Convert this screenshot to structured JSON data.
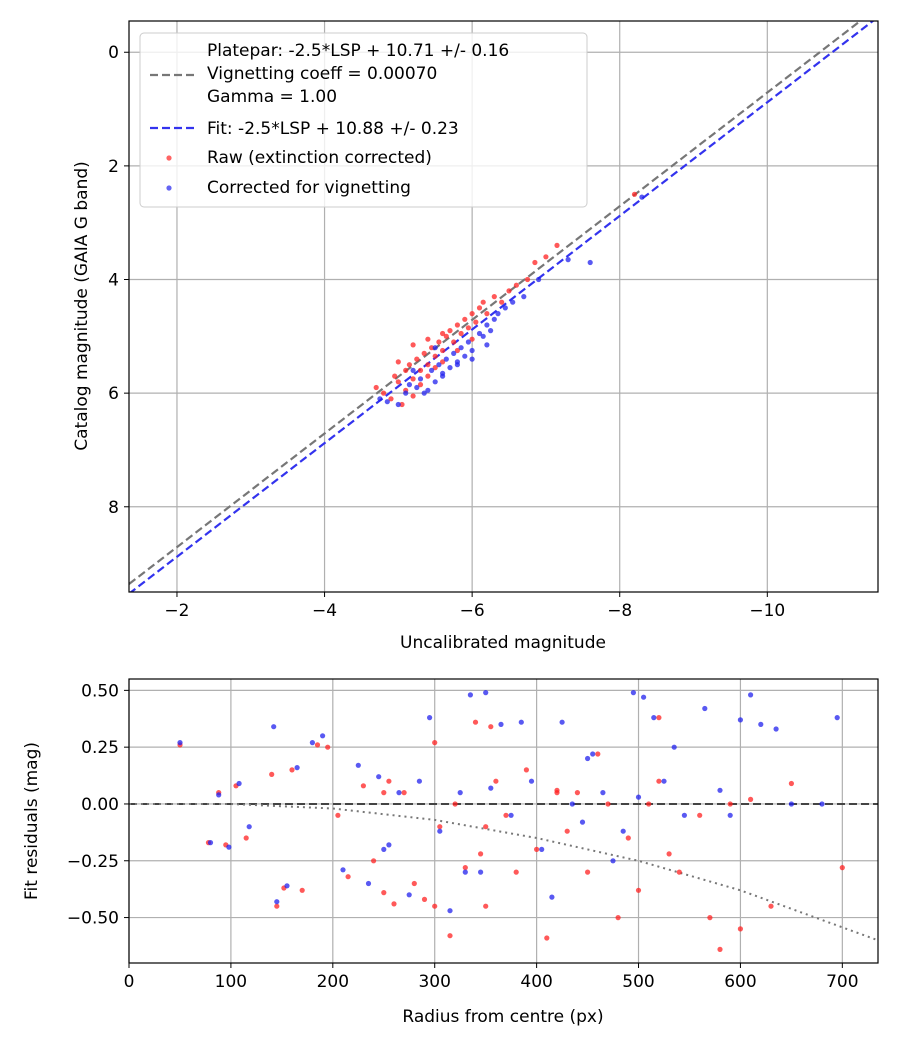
{
  "chart_data": [
    {
      "type": "scatter",
      "xlabel": "Uncalibrated magnitude",
      "ylabel": "Catalog magnitude (GAIA G band)",
      "xlim": [
        -1.35,
        -11.5
      ],
      "ylim": [
        9.5,
        -0.55
      ],
      "x_inverted": true,
      "y_inverted": true,
      "xticks": [
        -2,
        -4,
        -6,
        -8,
        -10
      ],
      "xtick_labels": [
        "−2",
        "−4",
        "−6",
        "−8",
        "−10"
      ],
      "yticks": [
        0,
        2,
        4,
        6,
        8
      ],
      "ytick_labels": [
        "0",
        "2",
        "4",
        "6",
        "8"
      ],
      "grid": true,
      "legend_position": "top-left",
      "legend": {
        "platepar_lines": [
          "Platepar: -2.5*LSP + 10.71 +/- 0.16",
          "Vignetting coeff = 0.00070",
          "Gamma = 1.00"
        ],
        "fit": "Fit: -2.5*LSP + 10.88 +/- 0.23",
        "raw": "Raw (extinction corrected)",
        "corrected": "Corrected for vignetting"
      },
      "series": [
        {
          "name": "Platepar",
          "kind": "line",
          "slope": 1,
          "intercept": 10.71,
          "color": "#777777",
          "dash": "dashed"
        },
        {
          "name": "Fit",
          "kind": "line",
          "slope": 1,
          "intercept": 10.88,
          "color": "#3333ee",
          "dash": "dashed"
        },
        {
          "name": "Raw (extinction corrected)",
          "kind": "scatter",
          "color": "#ff2222",
          "x": [
            -4.7,
            -4.8,
            -4.9,
            -4.95,
            -5.0,
            -5.05,
            -5.1,
            -5.1,
            -5.15,
            -5.2,
            -5.2,
            -5.25,
            -5.3,
            -5.3,
            -5.35,
            -5.4,
            -5.4,
            -5.45,
            -5.5,
            -5.5,
            -5.55,
            -5.6,
            -5.6,
            -5.65,
            -5.7,
            -5.75,
            -5.8,
            -5.85,
            -5.9,
            -5.95,
            -6.0,
            -6.05,
            -6.1,
            -6.15,
            -6.2,
            -6.3,
            -6.4,
            -6.5,
            -6.6,
            -6.75,
            -6.85,
            -7.0,
            -7.15,
            -8.2,
            -5.2,
            -5.4,
            -5.6,
            -5.0,
            -5.8,
            -6.0
          ],
          "y": [
            5.9,
            6.0,
            6.1,
            5.7,
            5.8,
            6.2,
            5.6,
            5.95,
            5.5,
            5.75,
            6.05,
            5.4,
            5.6,
            5.85,
            5.3,
            5.5,
            5.7,
            5.2,
            5.35,
            5.55,
            5.1,
            5.25,
            5.45,
            5.0,
            4.9,
            5.1,
            4.8,
            4.95,
            4.7,
            4.85,
            4.6,
            4.75,
            4.5,
            4.4,
            4.6,
            4.3,
            4.4,
            4.2,
            4.1,
            4.0,
            3.7,
            3.6,
            3.4,
            2.5,
            5.15,
            5.05,
            4.95,
            5.45,
            5.25,
            5.05
          ]
        },
        {
          "name": "Corrected for vignetting",
          "kind": "scatter",
          "color": "#2222ee",
          "x": [
            -4.75,
            -4.85,
            -5.0,
            -5.1,
            -5.15,
            -5.25,
            -5.3,
            -5.35,
            -5.45,
            -5.5,
            -5.55,
            -5.6,
            -5.65,
            -5.7,
            -5.75,
            -5.8,
            -5.85,
            -5.9,
            -5.95,
            -6.0,
            -6.1,
            -6.15,
            -6.2,
            -6.25,
            -6.3,
            -6.35,
            -6.45,
            -6.55,
            -6.7,
            -6.9,
            -7.3,
            -7.6,
            -8.3,
            -5.4,
            -5.6,
            -5.8,
            -6.0,
            -6.2,
            -5.2,
            -5.5
          ],
          "y": [
            6.1,
            6.15,
            6.2,
            6.0,
            5.85,
            5.9,
            5.75,
            6.0,
            5.6,
            5.8,
            5.5,
            5.65,
            5.4,
            5.55,
            5.3,
            5.45,
            5.2,
            5.35,
            5.1,
            5.25,
            4.95,
            5.0,
            4.8,
            4.9,
            4.7,
            4.6,
            4.5,
            4.4,
            4.3,
            4.0,
            3.65,
            3.7,
            2.55,
            5.95,
            5.7,
            5.5,
            5.4,
            5.15,
            5.6,
            5.2
          ]
        }
      ]
    },
    {
      "type": "scatter",
      "xlabel": "Radius from centre (px)",
      "ylabel": "Fit residuals (mag)",
      "xlim": [
        0,
        735
      ],
      "ylim": [
        -0.7,
        0.55
      ],
      "xticks": [
        0,
        100,
        200,
        300,
        400,
        500,
        600,
        700
      ],
      "xtick_labels": [
        "0",
        "100",
        "200",
        "300",
        "400",
        "500",
        "600",
        "700"
      ],
      "yticks": [
        0.5,
        0.25,
        0.0,
        -0.25,
        -0.5
      ],
      "ytick_labels": [
        "0.50",
        "0.25",
        "0.00",
        "−0.25",
        "−0.50"
      ],
      "grid": true,
      "series": [
        {
          "name": "Zero line",
          "kind": "hline",
          "y": 0.0,
          "color": "#444444",
          "dash": "dashed"
        },
        {
          "name": "Vignetting model",
          "kind": "curve",
          "x": [
            0,
            100,
            200,
            300,
            400,
            500,
            600,
            735
          ],
          "y": [
            0.0,
            0.0,
            -0.02,
            -0.07,
            -0.15,
            -0.25,
            -0.38,
            -0.6
          ],
          "color": "#777777",
          "dash": "dotted"
        },
        {
          "name": "Raw",
          "kind": "scatter",
          "color": "#ff2222",
          "x": [
            50,
            78,
            88,
            95,
            105,
            115,
            140,
            145,
            152,
            160,
            170,
            185,
            195,
            205,
            215,
            230,
            240,
            250,
            255,
            260,
            270,
            280,
            290,
            300,
            305,
            315,
            320,
            330,
            340,
            345,
            350,
            355,
            360,
            370,
            380,
            390,
            400,
            410,
            420,
            430,
            440,
            450,
            460,
            470,
            480,
            490,
            500,
            510,
            520,
            530,
            540,
            560,
            570,
            580,
            590,
            600,
            610,
            630,
            650,
            700,
            350,
            300,
            250,
            420,
            520
          ],
          "y": [
            0.26,
            -0.17,
            0.05,
            -0.18,
            0.08,
            -0.15,
            0.13,
            -0.45,
            -0.37,
            0.15,
            -0.38,
            0.26,
            0.25,
            -0.05,
            -0.32,
            0.08,
            -0.25,
            -0.39,
            0.1,
            -0.44,
            0.05,
            -0.35,
            -0.42,
            0.27,
            -0.1,
            -0.58,
            0.0,
            -0.28,
            0.36,
            -0.22,
            -0.45,
            0.34,
            0.1,
            -0.05,
            -0.3,
            0.15,
            -0.2,
            -0.59,
            0.05,
            -0.12,
            0.05,
            -0.3,
            0.22,
            0.0,
            -0.5,
            -0.15,
            -0.38,
            0.0,
            0.1,
            -0.22,
            -0.3,
            -0.05,
            -0.5,
            -0.64,
            0.0,
            -0.55,
            0.02,
            -0.45,
            0.09,
            -0.28,
            -0.1,
            -0.45,
            0.05,
            0.06,
            0.38
          ]
        },
        {
          "name": "Corrected",
          "kind": "scatter",
          "color": "#2222ee",
          "x": [
            50,
            80,
            88,
            98,
            108,
            118,
            142,
            145,
            155,
            165,
            180,
            190,
            210,
            225,
            235,
            245,
            255,
            265,
            275,
            285,
            295,
            305,
            315,
            325,
            335,
            345,
            350,
            355,
            365,
            375,
            385,
            395,
            405,
            415,
            425,
            435,
            445,
            455,
            465,
            475,
            485,
            495,
            500,
            505,
            515,
            525,
            535,
            545,
            565,
            580,
            590,
            600,
            610,
            620,
            635,
            650,
            680,
            695,
            250,
            330,
            450
          ],
          "y": [
            0.27,
            -0.17,
            0.04,
            -0.19,
            0.09,
            -0.1,
            0.34,
            -0.43,
            -0.36,
            0.16,
            0.27,
            0.3,
            -0.29,
            0.17,
            -0.35,
            0.12,
            -0.18,
            0.05,
            -0.4,
            0.1,
            0.38,
            -0.12,
            -0.47,
            0.05,
            0.48,
            -0.3,
            0.49,
            0.07,
            0.35,
            -0.05,
            0.36,
            0.1,
            -0.2,
            -0.41,
            0.36,
            0.0,
            -0.08,
            0.22,
            0.05,
            -0.25,
            -0.12,
            0.49,
            0.03,
            0.47,
            0.38,
            0.1,
            0.25,
            -0.05,
            0.42,
            0.06,
            -0.05,
            0.37,
            0.48,
            0.35,
            0.33,
            0.0,
            0.0,
            0.38,
            -0.2,
            -0.3,
            0.2
          ]
        }
      ]
    }
  ]
}
